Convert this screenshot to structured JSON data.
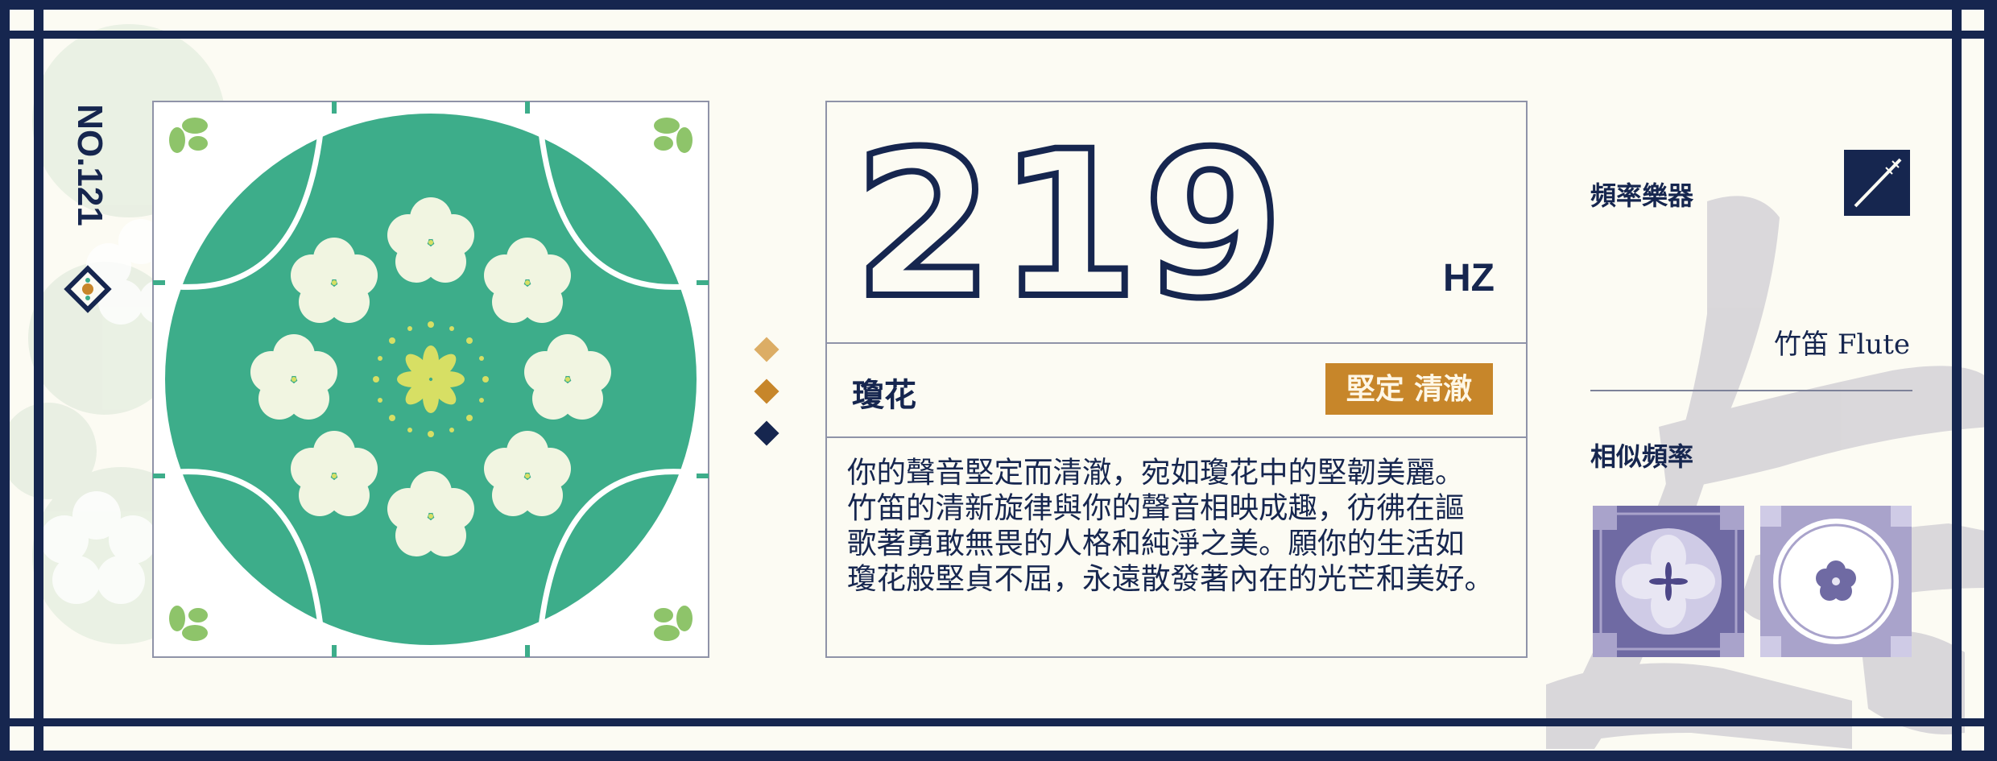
{
  "card": {
    "number": "NO.121"
  },
  "frequency": {
    "value": "219",
    "unit": "HZ"
  },
  "flower": {
    "name": "瓊花",
    "tag": "堅定 清澈",
    "description": [
      "你的聲音堅定而清澈，宛如瓊花中的堅韌美麗。",
      "竹笛的清新旋律與你的聲音相映成趣，彷彿在謳",
      "歌著勇敢無畏的人格和純淨之美。願你的生活如",
      "瓊花般堅貞不屈，永遠散發著內在的光芒和美好。"
    ]
  },
  "instrument": {
    "label": "頻率樂器",
    "name": "竹笛 Flute",
    "icon": "flute-icon"
  },
  "similar": {
    "label": "相似頻率"
  },
  "colors": {
    "navy": "#16264f",
    "green": "#3dad8a",
    "cream": "#fcfbf3",
    "orange": "#c7862a",
    "gold": "#dcad65",
    "purple": "#6f6aa3",
    "lavender": "#a9a3cb"
  }
}
